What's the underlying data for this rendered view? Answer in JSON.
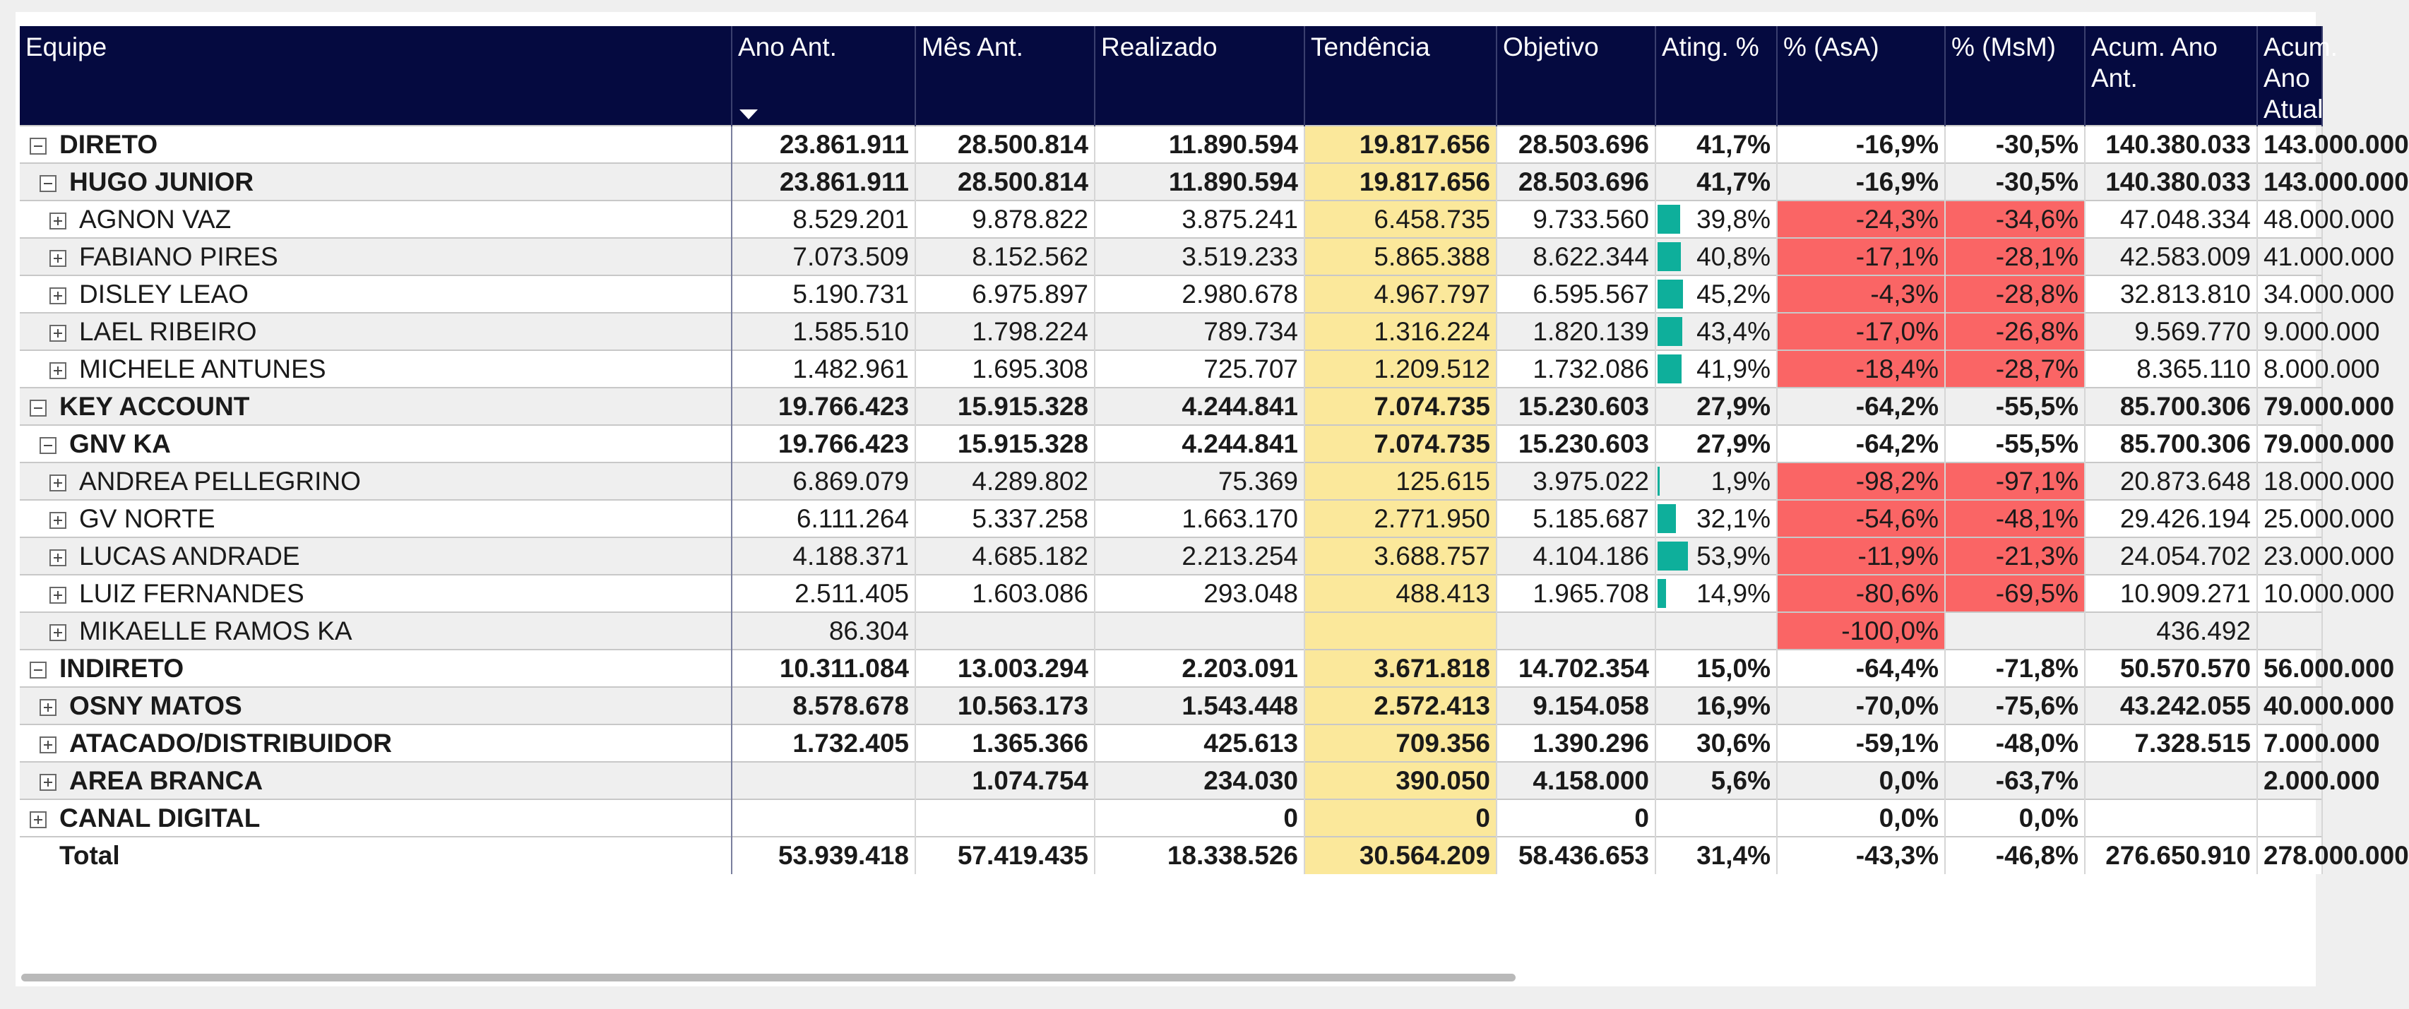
{
  "columns": [
    "Equipe",
    "Ano Ant.",
    "Mês Ant.",
    "Realizado",
    "Tendência",
    "Objetivo",
    "Ating. %",
    "% (AsA)",
    "% (MsM)",
    "Acum. Ano Ant.",
    "Acum. Ano Atual"
  ],
  "rows": [
    {
      "name": "DIRETO",
      "level": 0,
      "bold": true,
      "expander": "minus",
      "values": [
        "23.861.911",
        "28.500.814",
        "11.890.594",
        "19.817.656",
        "28.503.696",
        "41,7%",
        "-16,9%",
        "-30,5%",
        "140.380.033",
        "143.000.000"
      ],
      "ating_fraction": 0.417,
      "asa_neg": false,
      "msm_neg": false,
      "bar": false
    },
    {
      "name": "HUGO JUNIOR",
      "level": 1,
      "bold": true,
      "expander": "minus",
      "values": [
        "23.861.911",
        "28.500.814",
        "11.890.594",
        "19.817.656",
        "28.503.696",
        "41,7%",
        "-16,9%",
        "-30,5%",
        "140.380.033",
        "143.000.000"
      ],
      "ating_fraction": 0.417,
      "asa_neg": false,
      "msm_neg": false,
      "bar": false
    },
    {
      "name": "AGNON VAZ",
      "level": 2,
      "bold": false,
      "expander": "plus",
      "values": [
        "8.529.201",
        "9.878.822",
        "3.875.241",
        "6.458.735",
        "9.733.560",
        "39,8%",
        "-24,3%",
        "-34,6%",
        "47.048.334",
        "48.000.000"
      ],
      "ating_fraction": 0.398,
      "asa_neg": true,
      "msm_neg": true,
      "bar": true
    },
    {
      "name": "FABIANO PIRES",
      "level": 2,
      "bold": false,
      "expander": "plus",
      "values": [
        "7.073.509",
        "8.152.562",
        "3.519.233",
        "5.865.388",
        "8.622.344",
        "40,8%",
        "-17,1%",
        "-28,1%",
        "42.583.009",
        "41.000.000"
      ],
      "ating_fraction": 0.408,
      "asa_neg": true,
      "msm_neg": true,
      "bar": true
    },
    {
      "name": "DISLEY LEAO",
      "level": 2,
      "bold": false,
      "expander": "plus",
      "values": [
        "5.190.731",
        "6.975.897",
        "2.980.678",
        "4.967.797",
        "6.595.567",
        "45,2%",
        "-4,3%",
        "-28,8%",
        "32.813.810",
        "34.000.000"
      ],
      "ating_fraction": 0.452,
      "asa_neg": true,
      "msm_neg": true,
      "bar": true
    },
    {
      "name": "LAEL RIBEIRO",
      "level": 2,
      "bold": false,
      "expander": "plus",
      "values": [
        "1.585.510",
        "1.798.224",
        "789.734",
        "1.316.224",
        "1.820.139",
        "43,4%",
        "-17,0%",
        "-26,8%",
        "9.569.770",
        "9.000.000"
      ],
      "ating_fraction": 0.434,
      "asa_neg": true,
      "msm_neg": true,
      "bar": true
    },
    {
      "name": "MICHELE ANTUNES",
      "level": 2,
      "bold": false,
      "expander": "plus",
      "values": [
        "1.482.961",
        "1.695.308",
        "725.707",
        "1.209.512",
        "1.732.086",
        "41,9%",
        "-18,4%",
        "-28,7%",
        "8.365.110",
        "8.000.000"
      ],
      "ating_fraction": 0.419,
      "asa_neg": true,
      "msm_neg": true,
      "bar": true
    },
    {
      "name": "KEY ACCOUNT",
      "level": 0,
      "bold": true,
      "expander": "minus",
      "values": [
        "19.766.423",
        "15.915.328",
        "4.244.841",
        "7.074.735",
        "15.230.603",
        "27,9%",
        "-64,2%",
        "-55,5%",
        "85.700.306",
        "79.000.000"
      ],
      "ating_fraction": 0.279,
      "asa_neg": false,
      "msm_neg": false,
      "bar": false
    },
    {
      "name": "GNV KA",
      "level": 1,
      "bold": true,
      "expander": "minus",
      "values": [
        "19.766.423",
        "15.915.328",
        "4.244.841",
        "7.074.735",
        "15.230.603",
        "27,9%",
        "-64,2%",
        "-55,5%",
        "85.700.306",
        "79.000.000"
      ],
      "ating_fraction": 0.279,
      "asa_neg": false,
      "msm_neg": false,
      "bar": false
    },
    {
      "name": "ANDREA PELLEGRINO",
      "level": 2,
      "bold": false,
      "expander": "plus",
      "values": [
        "6.869.079",
        "4.289.802",
        "75.369",
        "125.615",
        "3.975.022",
        "1,9%",
        "-98,2%",
        "-97,1%",
        "20.873.648",
        "18.000.000"
      ],
      "ating_fraction": 0.019,
      "asa_neg": true,
      "msm_neg": true,
      "bar": true
    },
    {
      "name": "GV NORTE",
      "level": 2,
      "bold": false,
      "expander": "plus",
      "values": [
        "6.111.264",
        "5.337.258",
        "1.663.170",
        "2.771.950",
        "5.185.687",
        "32,1%",
        "-54,6%",
        "-48,1%",
        "29.426.194",
        "25.000.000"
      ],
      "ating_fraction": 0.321,
      "asa_neg": true,
      "msm_neg": true,
      "bar": true
    },
    {
      "name": "LUCAS ANDRADE",
      "level": 2,
      "bold": false,
      "expander": "plus",
      "values": [
        "4.188.371",
        "4.685.182",
        "2.213.254",
        "3.688.757",
        "4.104.186",
        "53,9%",
        "-11,9%",
        "-21,3%",
        "24.054.702",
        "23.000.000"
      ],
      "ating_fraction": 0.539,
      "asa_neg": true,
      "msm_neg": true,
      "bar": true
    },
    {
      "name": "LUIZ FERNANDES",
      "level": 2,
      "bold": false,
      "expander": "plus",
      "values": [
        "2.511.405",
        "1.603.086",
        "293.048",
        "488.413",
        "1.965.708",
        "14,9%",
        "-80,6%",
        "-69,5%",
        "10.909.271",
        "10.000.000"
      ],
      "ating_fraction": 0.149,
      "asa_neg": true,
      "msm_neg": true,
      "bar": true
    },
    {
      "name": "MIKAELLE RAMOS KA",
      "level": 2,
      "bold": false,
      "expander": "plus",
      "values": [
        "86.304",
        "",
        "",
        "",
        "",
        "",
        "-100,0%",
        "",
        "436.492",
        ""
      ],
      "ating_fraction": 0,
      "asa_neg": true,
      "msm_neg": false,
      "bar": false
    },
    {
      "name": "INDIRETO",
      "level": 0,
      "bold": true,
      "expander": "minus",
      "values": [
        "10.311.084",
        "13.003.294",
        "2.203.091",
        "3.671.818",
        "14.702.354",
        "15,0%",
        "-64,4%",
        "-71,8%",
        "50.570.570",
        "56.000.000"
      ],
      "ating_fraction": 0.15,
      "asa_neg": false,
      "msm_neg": false,
      "bar": false
    },
    {
      "name": "OSNY MATOS",
      "level": 1,
      "bold": true,
      "expander": "plus",
      "values": [
        "8.578.678",
        "10.563.173",
        "1.543.448",
        "2.572.413",
        "9.154.058",
        "16,9%",
        "-70,0%",
        "-75,6%",
        "43.242.055",
        "40.000.000"
      ],
      "ating_fraction": 0.169,
      "asa_neg": false,
      "msm_neg": false,
      "bar": false
    },
    {
      "name": "ATACADO/DISTRIBUIDOR",
      "level": 1,
      "bold": true,
      "expander": "plus",
      "values": [
        "1.732.405",
        "1.365.366",
        "425.613",
        "709.356",
        "1.390.296",
        "30,6%",
        "-59,1%",
        "-48,0%",
        "7.328.515",
        "7.000.000"
      ],
      "ating_fraction": 0.306,
      "asa_neg": false,
      "msm_neg": false,
      "bar": false
    },
    {
      "name": "AREA BRANCA",
      "level": 1,
      "bold": true,
      "expander": "plus",
      "values": [
        "",
        "1.074.754",
        "234.030",
        "390.050",
        "4.158.000",
        "5,6%",
        "0,0%",
        "-63,7%",
        "",
        "2.000.000"
      ],
      "ating_fraction": 0.056,
      "asa_neg": false,
      "msm_neg": false,
      "bar": false
    },
    {
      "name": "CANAL DIGITAL",
      "level": 0,
      "bold": true,
      "expander": "plus",
      "values": [
        "",
        "",
        "0",
        "0",
        "0",
        "",
        "0,0%",
        "0,0%",
        "",
        ""
      ],
      "ating_fraction": 0,
      "asa_neg": false,
      "msm_neg": false,
      "bar": false
    }
  ],
  "total": {
    "name": "Total",
    "values": [
      "53.939.418",
      "57.419.435",
      "18.338.526",
      "30.564.209",
      "58.436.653",
      "31,4%",
      "-43,3%",
      "-46,8%",
      "276.650.910",
      "278.000.000"
    ]
  },
  "colors": {
    "header_bg": "#050a40",
    "trend_bg": "#fbe89b",
    "negative_bg": "#fa6565",
    "bar": "#0eaf9b"
  }
}
